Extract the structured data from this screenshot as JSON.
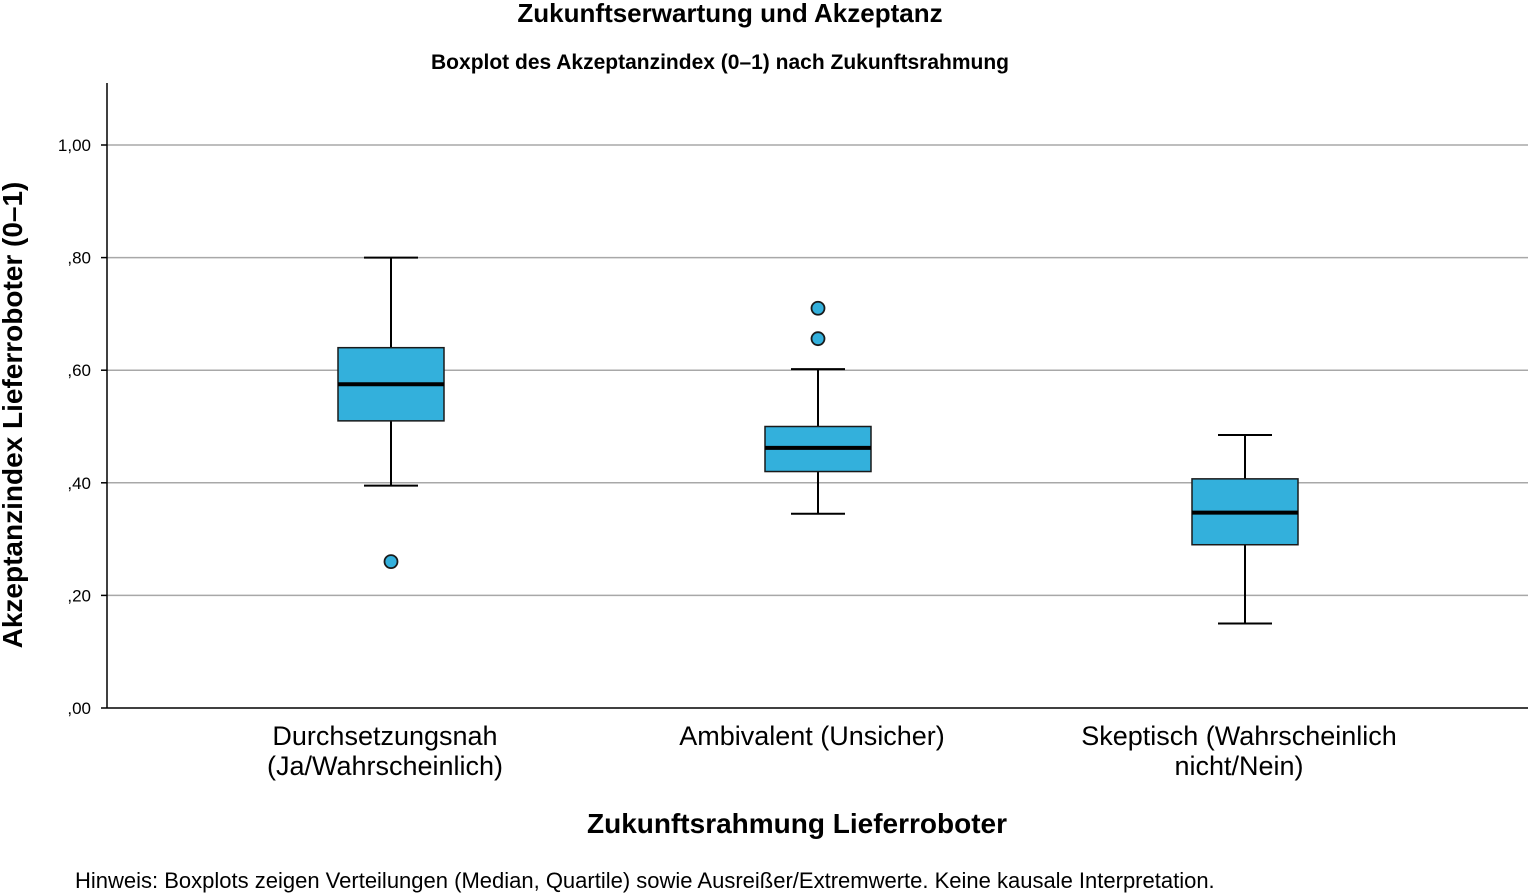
{
  "chart_data": {
    "type": "boxplot",
    "title": "Zukunftserwartung und Akzeptanz",
    "subtitle": "Boxplot des Akzeptanzindex (0–1) nach Zukunftsrahmung",
    "xlabel": "Zukunftsrahmung Lieferroboter",
    "ylabel": "Akzeptanzindex Lieferroboter (0–1)",
    "ylim": [
      0,
      1.1
    ],
    "yticks": [
      {
        "value": 0.0,
        "label": ",00"
      },
      {
        "value": 0.2,
        "label": ",20"
      },
      {
        "value": 0.4,
        "label": ",40"
      },
      {
        "value": 0.6,
        "label": ",60"
      },
      {
        "value": 0.8,
        "label": ",80"
      },
      {
        "value": 1.0,
        "label": "1,00"
      }
    ],
    "grid": true,
    "box_color": "#33b0dc",
    "categories": [
      {
        "label_lines": [
          "Durchsetzungsnah",
          "(Ja/Wahrscheinlich)"
        ],
        "whisker_low": 0.395,
        "q1": 0.51,
        "median": 0.575,
        "q3": 0.64,
        "whisker_high": 0.8,
        "outliers": [
          0.26
        ]
      },
      {
        "label_lines": [
          "Ambivalent (Unsicher)"
        ],
        "whisker_low": 0.345,
        "q1": 0.42,
        "median": 0.462,
        "q3": 0.5,
        "whisker_high": 0.602,
        "outliers": [
          0.71,
          0.656
        ]
      },
      {
        "label_lines": [
          "Skeptisch (Wahrscheinlich",
          "nicht/Nein)"
        ],
        "whisker_low": 0.15,
        "q1": 0.29,
        "median": 0.347,
        "q3": 0.407,
        "whisker_high": 0.485,
        "outliers": []
      }
    ]
  },
  "note": "Hinweis: Boxplots zeigen Verteilungen (Median, Quartile) sowie Ausreißer/Extremwerte. Keine kausale Interpretation."
}
